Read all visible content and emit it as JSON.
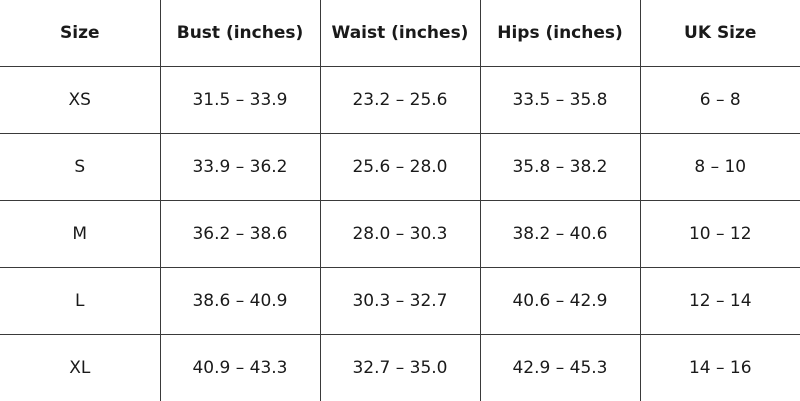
{
  "table": {
    "header": [
      "Size",
      "Bust (inches)",
      "Waist (inches)",
      "Hips (inches)",
      "UK Size"
    ],
    "rows": [
      [
        "XS",
        "31.5 – 33.9",
        "23.2 – 25.6",
        "33.5 – 35.8",
        "6 – 8"
      ],
      [
        "S",
        "33.9 – 36.2",
        "25.6 – 28.0",
        "35.8 – 38.2",
        "8 – 10"
      ],
      [
        "M",
        "36.2 – 38.6",
        "28.0 – 30.3",
        "38.2 – 40.6",
        "10 – 12"
      ],
      [
        "L",
        "38.6 – 40.9",
        "30.3 – 32.7",
        "40.6 – 42.9",
        "12 – 14"
      ],
      [
        "XL",
        "40.9 – 43.3",
        "32.7 – 35.0",
        "42.9 – 45.3",
        "14 – 16"
      ]
    ]
  }
}
